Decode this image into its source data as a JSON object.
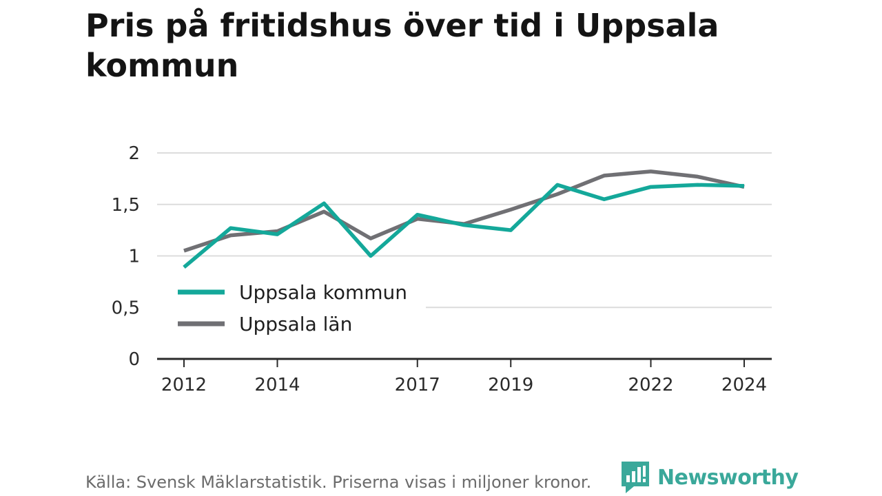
{
  "chart_data": {
    "type": "line",
    "title": "Pris på fritidshus över tid i Uppsala kommun",
    "xlabel": "",
    "ylabel": "",
    "x": [
      2012,
      2013,
      2014,
      2015,
      2016,
      2017,
      2018,
      2019,
      2020,
      2021,
      2022,
      2023,
      2024
    ],
    "x_tick_labels": [
      "2012",
      "2014",
      "2017",
      "2019",
      "2022",
      "2024"
    ],
    "y_tick_labels": [
      "0",
      "0,5",
      "1",
      "1,5",
      "2"
    ],
    "ylim": [
      0,
      2
    ],
    "grid": true,
    "legend_position": "lower-left",
    "series": [
      {
        "name": "Uppsala kommun",
        "color": "#14a89a",
        "values": [
          0.89,
          1.27,
          1.21,
          1.51,
          1.0,
          1.4,
          1.3,
          1.25,
          1.69,
          1.55,
          1.67,
          1.69,
          1.68
        ]
      },
      {
        "name": "Uppsala län",
        "color": "#707074",
        "values": [
          1.05,
          1.2,
          1.24,
          1.43,
          1.17,
          1.36,
          1.31,
          1.45,
          1.6,
          1.78,
          1.82,
          1.77,
          1.67
        ]
      }
    ]
  },
  "source_text": "Källa: Svensk Mäklarstatistik. Priserna visas i miljoner kronor.",
  "brand": {
    "name": "Newsworthy",
    "color": "#3aa89a",
    "icon": "newsworthy-logo-icon"
  }
}
